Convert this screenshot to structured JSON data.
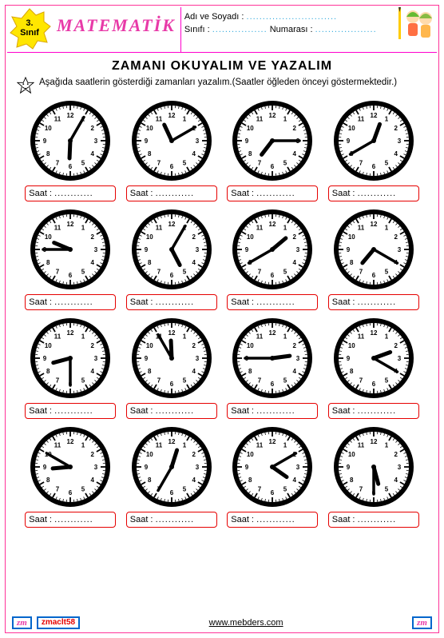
{
  "header": {
    "grade_num": "3.",
    "grade_label": "Sınıf",
    "subject": "MATEMATİK",
    "name_label": "Adı ve Soyadı :",
    "name_dots": "............................",
    "class_label": "Sınıfı :",
    "class_dots": ".................",
    "number_label": "Numarası :",
    "number_dots": "..................."
  },
  "title": "ZAMANI  OKUYALIM  VE  YAZALIM",
  "instruction": "Aşağıda  saatlerin gösterdiği zamanları yazalım.(Saatler öğleden önceyi göstermektedir.)",
  "answer_label": "Saat :",
  "answer_dots": "............",
  "clock_style": {
    "face_fill": "#ffffff",
    "rim_fill": "#000000",
    "numeral_size": 8,
    "hour_hand_len": 22,
    "minute_hand_len": 34,
    "hour_hand_w": 5,
    "minute_hand_w": 3.5
  },
  "clocks": [
    {
      "h": 6,
      "m": 5
    },
    {
      "h": 11,
      "m": 10
    },
    {
      "h": 7,
      "m": 15
    },
    {
      "h": 12,
      "m": 40
    },
    {
      "h": 9,
      "m": 45
    },
    {
      "h": 5,
      "m": 5
    },
    {
      "h": 1,
      "m": 40
    },
    {
      "h": 7,
      "m": 20
    },
    {
      "h": 8,
      "m": 30
    },
    {
      "h": 11,
      "m": 55
    },
    {
      "h": 2,
      "m": 45
    },
    {
      "h": 2,
      "m": 20
    },
    {
      "h": 8,
      "m": 50
    },
    {
      "h": 12,
      "m": 35
    },
    {
      "h": 4,
      "m": 10
    },
    {
      "h": 5,
      "m": 30
    }
  ],
  "footer": {
    "left": "zm",
    "code": "zmaclt58",
    "url": "www.mebders.com",
    "right": "zm"
  }
}
